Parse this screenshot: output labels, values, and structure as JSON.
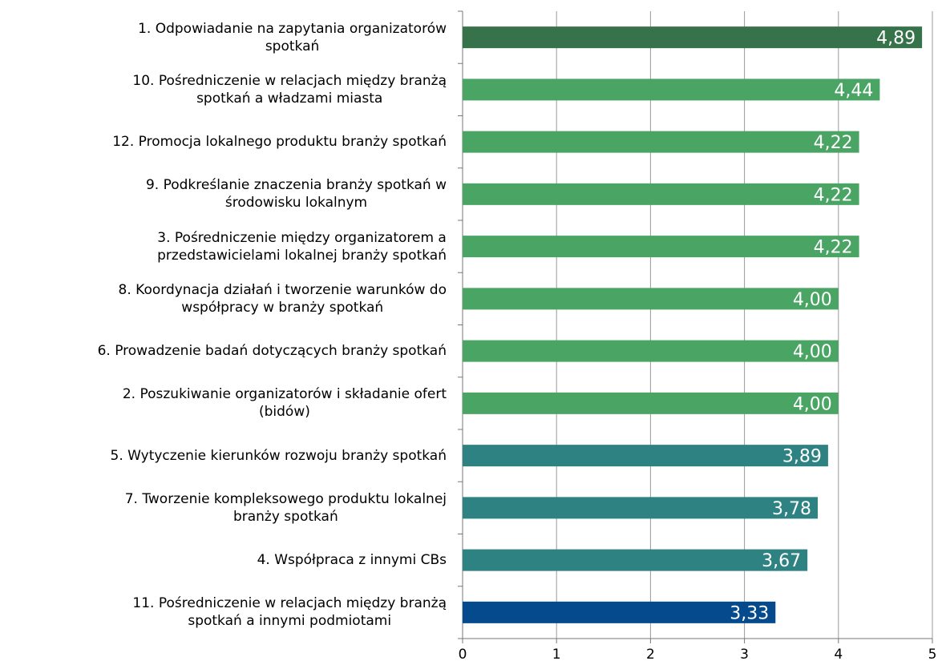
{
  "chart_data": {
    "type": "barh",
    "categories": [
      "1. Odpowiadanie na zapytania organizatorów\nspotkań",
      "10. Pośredniczenie w relacjach między branżą\nspotkań a władzami miasta",
      "12. Promocja lokalnego produktu branży spotkań",
      "9. Podkreślanie znaczenia branży spotkań w\nśrodowisku lokalnym",
      "3. Pośredniczenie między organizatorem a\nprzedstawicielami lokalnej branży spotkań",
      "8. Koordynacja działań i tworzenie warunków do\nwspółpracy w branży spotkań",
      "6. Prowadzenie badań dotyczących branży spotkań",
      "2. Poszukiwanie organizatorów i składanie ofert\n(bidów)",
      "5. Wytyczenie kierunków rozwoju branży spotkań",
      "7. Tworzenie kompleksowego produktu lokalnej\nbranży spotkań",
      "4. Współpraca z innymi CBs",
      "11. Pośredniczenie w relacjach między branżą\nspotkań a innymi podmiotami"
    ],
    "values": [
      4.89,
      4.44,
      4.22,
      4.22,
      4.22,
      4.0,
      4.0,
      4.0,
      3.89,
      3.78,
      3.67,
      3.33
    ],
    "value_labels": [
      "4,89",
      "4,44",
      "4,22",
      "4,22",
      "4,22",
      "4,00",
      "4,00",
      "4,00",
      "3,89",
      "3,78",
      "3,67",
      "3,33"
    ],
    "colors": [
      "#37734a",
      "#4aa564",
      "#4aa564",
      "#4aa564",
      "#4aa564",
      "#4aa564",
      "#4aa564",
      "#4aa564",
      "#2e8282",
      "#2e8282",
      "#2e8282",
      "#064a8e"
    ],
    "xlim": [
      0,
      5
    ],
    "xticks": [
      0,
      1,
      2,
      3,
      4,
      5
    ],
    "grid": true
  }
}
